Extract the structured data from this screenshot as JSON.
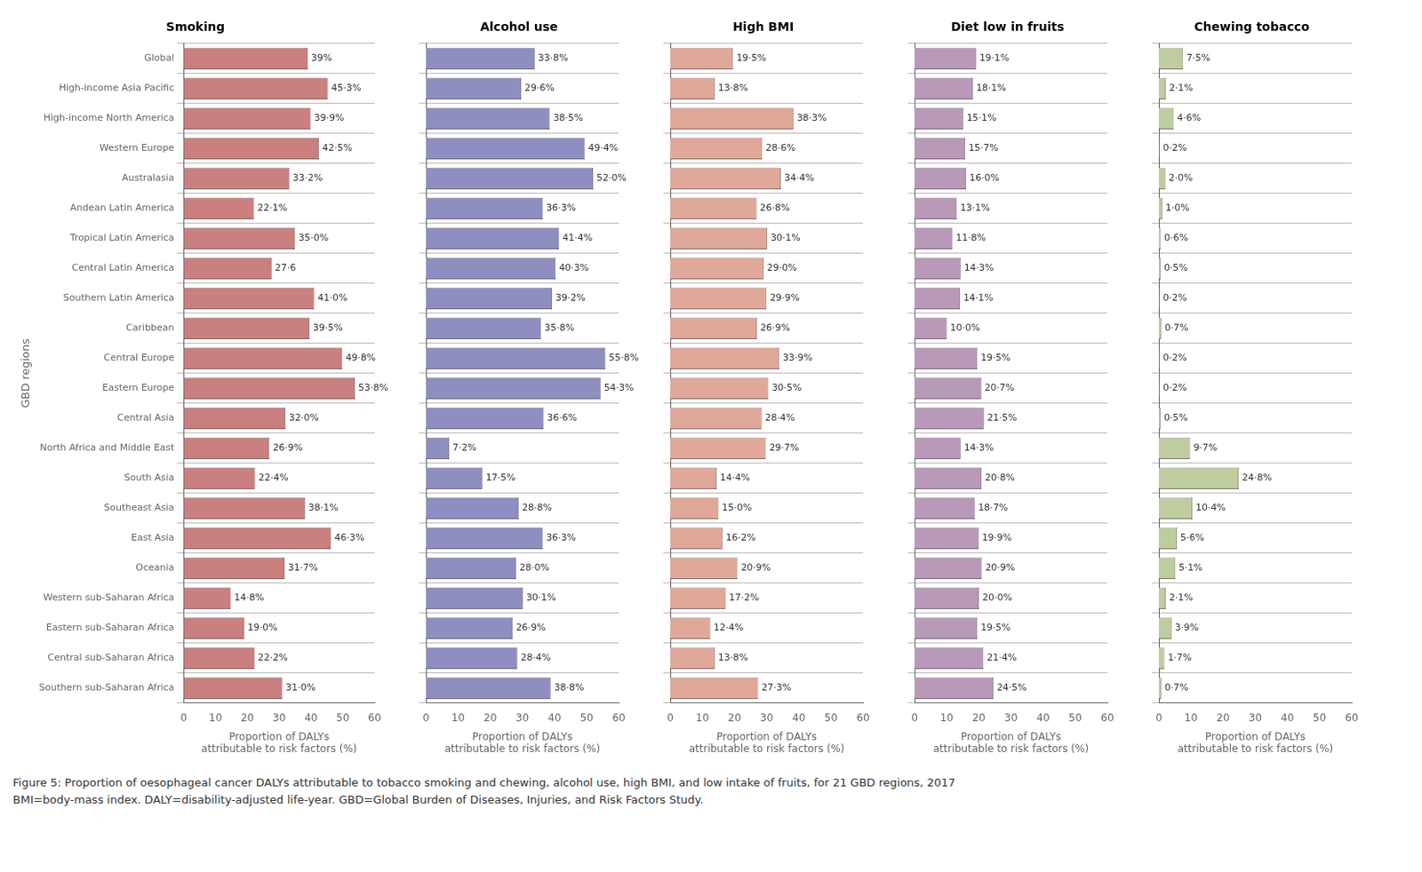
{
  "chart_data": [
    {
      "type": "bar",
      "orientation": "horizontal",
      "title": "Smoking",
      "xlabel": [
        "Proportion of DALYs",
        "attributable to risk factors (%)"
      ],
      "ylabel": "GBD regions",
      "categories": [
        "Global",
        "High-income Asia Pacific",
        "High-income North America",
        "Western Europe",
        "Australasia",
        "Andean Latin America",
        "Tropical Latin America",
        "Central Latin America",
        "Southern Latin America",
        "Caribbean",
        "Central Europe",
        "Eastern Europe",
        "Central Asia",
        "North Africa and Middle East",
        "South Asia",
        "Southeast Asia",
        "East Asia",
        "Oceania",
        "Western sub-Saharan Africa",
        "Eastern sub-Saharan Africa",
        "Central sub-Saharan Africa",
        "Southern sub-Saharan Africa"
      ],
      "values": [
        39.0,
        45.3,
        39.9,
        42.5,
        33.2,
        22.1,
        35.0,
        27.6,
        41.0,
        39.5,
        49.8,
        53.8,
        32.0,
        26.9,
        22.4,
        38.1,
        46.3,
        31.7,
        14.8,
        19.0,
        22.2,
        31.0
      ],
      "value_labels": [
        "39%",
        "45·3%",
        "39·9%",
        "42·5%",
        "33·2%",
        "22·1%",
        "35·0%",
        "27·6",
        "41·0%",
        "39·5%",
        "49·8%",
        "53·8%",
        "32·0%",
        "26·9%",
        "22·4%",
        "38·1%",
        "46·3%",
        "31·7%",
        "14·8%",
        "19·0%",
        "22·2%",
        "31·0%"
      ],
      "color": "#C9807E",
      "xlim": [
        0,
        60
      ],
      "xticks": [
        0,
        10,
        20,
        30,
        40,
        50,
        60
      ],
      "grid": true,
      "data_labels": true,
      "tick_labels": true
    },
    {
      "type": "bar",
      "orientation": "horizontal",
      "title": "Alcohol use",
      "xlabel": [
        "Proportion of DALYs",
        "attributable to risk factors (%)"
      ],
      "categories": [
        "Global",
        "High-income Asia Pacific",
        "High-income North America",
        "Western Europe",
        "Australasia",
        "Andean Latin America",
        "Tropical Latin America",
        "Central Latin America",
        "Southern Latin America",
        "Caribbean",
        "Central Europe",
        "Eastern Europe",
        "Central Asia",
        "North Africa and Middle East",
        "South Asia",
        "Southeast Asia",
        "East Asia",
        "Oceania",
        "Western sub-Saharan Africa",
        "Eastern sub-Saharan Africa",
        "Central sub-Saharan Africa",
        "Southern sub-Saharan Africa"
      ],
      "values": [
        33.8,
        29.6,
        38.5,
        49.4,
        52.0,
        36.3,
        41.4,
        40.3,
        39.2,
        35.8,
        55.8,
        54.3,
        36.6,
        7.2,
        17.5,
        28.8,
        36.3,
        28.0,
        30.1,
        26.9,
        28.4,
        38.8
      ],
      "value_labels": [
        "33·8%",
        "29·6%",
        "38·5%",
        "49·4%",
        "52·0%",
        "36·3%",
        "41·4%",
        "40·3%",
        "39·2%",
        "35·8%",
        "55·8%",
        "54·3%",
        "36·6%",
        "7·2%",
        "17·5%",
        "28·8%",
        "36·3%",
        "28·0%",
        "30·1%",
        "26·9%",
        "28·4%",
        "38·8%"
      ],
      "color": "#8E8FC0",
      "xlim": [
        0,
        60
      ],
      "xticks": [
        0,
        10,
        20,
        30,
        40,
        50,
        60
      ],
      "grid": true,
      "data_labels": true,
      "tick_labels": "x"
    },
    {
      "type": "bar",
      "orientation": "horizontal",
      "title": "High BMI",
      "xlabel": [
        "Proportion of DALYs",
        "attributable to risk factors (%)"
      ],
      "categories": [
        "Global",
        "High-income Asia Pacific",
        "High-income North America",
        "Western Europe",
        "Australasia",
        "Andean Latin America",
        "Tropical Latin America",
        "Central Latin America",
        "Southern Latin America",
        "Caribbean",
        "Central Europe",
        "Eastern Europe",
        "Central Asia",
        "North Africa and Middle East",
        "South Asia",
        "Southeast Asia",
        "East Asia",
        "Oceania",
        "Western sub-Saharan Africa",
        "Eastern sub-Saharan Africa",
        "Central sub-Saharan Africa",
        "Southern sub-Saharan Africa"
      ],
      "values": [
        19.5,
        13.8,
        38.3,
        28.6,
        34.4,
        26.8,
        30.1,
        29.0,
        29.9,
        26.9,
        33.9,
        30.5,
        28.4,
        29.7,
        14.4,
        15.0,
        16.2,
        20.9,
        17.2,
        12.4,
        13.8,
        27.3
      ],
      "value_labels": [
        "19·5%",
        "13·8%",
        "38·3%",
        "28·6%",
        "34·4%",
        "26·8%",
        "30·1%",
        "29·0%",
        "29·9%",
        "26·9%",
        "33·9%",
        "30·5%",
        "28·4%",
        "29·7%",
        "14·4%",
        "15·0%",
        "16·2%",
        "20·9%",
        "17·2%",
        "12·4%",
        "13·8%",
        "27·3%"
      ],
      "color": "#E0A898",
      "xlim": [
        0,
        60
      ],
      "xticks": [
        0,
        10,
        20,
        30,
        40,
        50,
        60
      ],
      "grid": true,
      "data_labels": true,
      "tick_labels": "x"
    },
    {
      "type": "bar",
      "orientation": "horizontal",
      "title": "Diet low in fruits",
      "xlabel": [
        "Proportion of DALYs",
        "attributable to risk factors (%)"
      ],
      "categories": [
        "Global",
        "High-income Asia Pacific",
        "High-income North America",
        "Western Europe",
        "Australasia",
        "Andean Latin America",
        "Tropical Latin America",
        "Central Latin America",
        "Southern Latin America",
        "Caribbean",
        "Central Europe",
        "Eastern Europe",
        "Central Asia",
        "North Africa and Middle East",
        "South Asia",
        "Southeast Asia",
        "East Asia",
        "Oceania",
        "Western sub-Saharan Africa",
        "Eastern sub-Saharan Africa",
        "Central sub-Saharan Africa",
        "Southern sub-Saharan Africa"
      ],
      "values": [
        19.1,
        18.1,
        15.1,
        15.7,
        16.0,
        13.1,
        11.8,
        14.3,
        14.1,
        10.0,
        19.5,
        20.7,
        21.5,
        14.3,
        20.8,
        18.7,
        19.9,
        20.9,
        20.0,
        19.5,
        21.4,
        24.5
      ],
      "value_labels": [
        "19·1%",
        "18·1%",
        "15·1%",
        "15·7%",
        "16·0%",
        "13·1%",
        "11·8%",
        "14·3%",
        "14·1%",
        "10·0%",
        "19·5%",
        "20·7%",
        "21·5%",
        "14·3%",
        "20·8%",
        "18·7%",
        "19·9%",
        "20·9%",
        "20·0%",
        "19·5%",
        "21·4%",
        "24·5%"
      ],
      "color": "#B899B8",
      "xlim": [
        0,
        60
      ],
      "xticks": [
        0,
        10,
        20,
        30,
        40,
        50,
        60
      ],
      "grid": true,
      "data_labels": true,
      "tick_labels": "x"
    },
    {
      "type": "bar",
      "orientation": "horizontal",
      "title": "Chewing tobacco",
      "xlabel": [
        "Proportion of DALYs",
        "attributable to risk factors (%)"
      ],
      "categories": [
        "Global",
        "High-income Asia Pacific",
        "High-income North America",
        "Western Europe",
        "Australasia",
        "Andean Latin America",
        "Tropical Latin America",
        "Central Latin America",
        "Southern Latin America",
        "Caribbean",
        "Central Europe",
        "Eastern Europe",
        "Central Asia",
        "North Africa and Middle East",
        "South Asia",
        "Southeast Asia",
        "East Asia",
        "Oceania",
        "Western sub-Saharan Africa",
        "Eastern sub-Saharan Africa",
        "Central sub-Saharan Africa",
        "Southern sub-Saharan Africa"
      ],
      "values": [
        7.5,
        2.1,
        4.6,
        0.2,
        2.0,
        1.0,
        0.6,
        0.5,
        0.2,
        0.7,
        0.2,
        0.2,
        0.5,
        9.7,
        24.8,
        10.4,
        5.6,
        5.1,
        2.1,
        3.9,
        1.7,
        0.7
      ],
      "value_labels": [
        "7·5%",
        "2·1%",
        "4·6%",
        "0·2%",
        "2·0%",
        "1·0%",
        "0·6%",
        "0·5%",
        "0·2%",
        "0·7%",
        "0·2%",
        "0·2%",
        "0·5%",
        "9·7%",
        "24·8%",
        "10·4%",
        "5·6%",
        "5·1%",
        "2·1%",
        "3·9%",
        "1·7%",
        "0·7%"
      ],
      "color": "#BFCC9F",
      "xlim": [
        0,
        60
      ],
      "xticks": [
        0,
        10,
        20,
        30,
        40,
        50,
        60
      ],
      "grid": true,
      "data_labels": true,
      "tick_labels": "x"
    }
  ],
  "caption": [
    "Figure 5: Proportion of oesophageal cancer DALYs attributable to tobacco smoking and chewing, alcohol use, high BMI, and low intake of fruits, for 21 GBD regions, 2017",
    "BMI=body-mass index. DALY=disability-adjusted life-year. GBD=Global Burden of Diseases, Injuries, and Risk Factors Study."
  ]
}
